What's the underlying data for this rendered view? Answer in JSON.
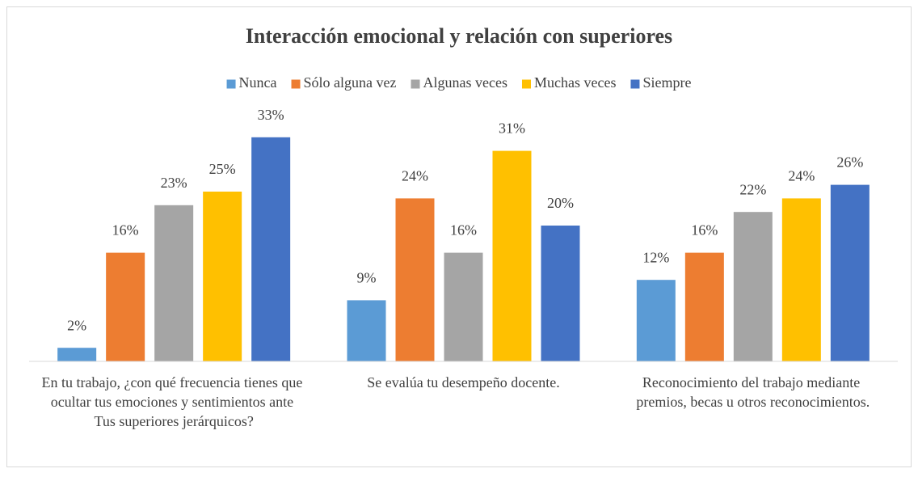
{
  "chart_data": {
    "type": "bar",
    "title": "Interacción emocional y relación con superiores",
    "categories": [
      "En tu trabajo, ¿con qué frecuencia tienes que ocultar tus emociones y sentimientos ante Tus superiores jerárquicos?",
      "Se evalúa tu desempeño docente.",
      "Reconocimiento del trabajo mediante premios, becas u otros reconocimientos."
    ],
    "series": [
      {
        "name": "Nunca",
        "color": "#5b9bd5",
        "values": [
          2,
          9,
          12
        ],
        "value_labels": [
          "2%",
          "9%",
          "12%"
        ]
      },
      {
        "name": "Sólo alguna vez",
        "color": "#ed7d31",
        "values": [
          16,
          24,
          16
        ],
        "value_labels": [
          "16%",
          "24%",
          "16%"
        ]
      },
      {
        "name": "Algunas veces",
        "color": "#a5a5a5",
        "values": [
          23,
          16,
          22
        ],
        "value_labels": [
          "23%",
          "16%",
          "22%"
        ]
      },
      {
        "name": "Muchas veces",
        "color": "#ffc000",
        "values": [
          25,
          31,
          24
        ],
        "value_labels": [
          "25%",
          "31%",
          "24%"
        ]
      },
      {
        "name": "Siempre",
        "color": "#4472c4",
        "values": [
          33,
          20,
          26
        ],
        "value_labels": [
          "33%",
          "20%",
          "26%"
        ]
      }
    ],
    "legend": "top"
  }
}
